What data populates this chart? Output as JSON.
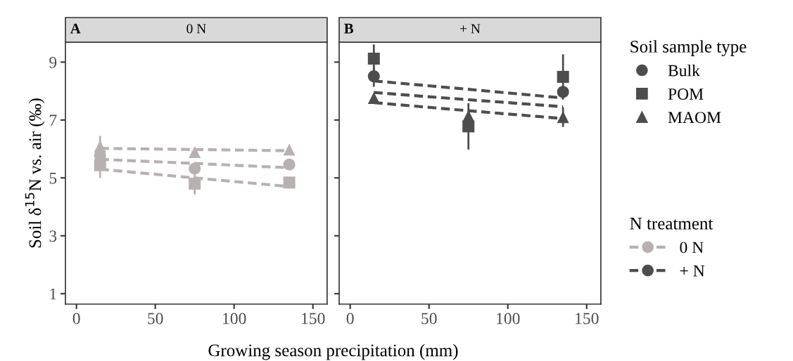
{
  "chart_data": [
    {
      "type": "scatter",
      "title": "0 N",
      "annotations": [
        "A"
      ],
      "xlabel": "Growing season precipitation (mm)",
      "ylabel": "Soil δ$^{15}$N vs. air (‰)",
      "legend": "right",
      "legend_title": "N treatment",
      "x": [
        15,
        75,
        135
      ],
      "xlim": [
        -7,
        159
      ],
      "xticks": [
        0,
        50,
        100,
        150
      ],
      "ylim": [
        0.64,
        9.69
      ],
      "yticks": [
        1,
        3,
        5,
        7,
        9
      ],
      "grid": false,
      "series": [
        {
          "color": "#b8b1b1",
          "marker": "circle",
          "values": [
            5.77,
            5.32,
            5.46
          ],
          "errors": [
            null,
            null,
            null
          ]
        },
        {
          "color": "#b8b1b1",
          "marker": "square",
          "values": [
            5.44,
            4.8,
            4.84
          ],
          "errors": [
            0.44,
            0.37,
            null
          ]
        },
        {
          "color": "#b8b1b1",
          "marker": "triangle",
          "values": [
            6.09,
            5.89,
            5.98
          ],
          "errors": [
            0.36,
            null,
            null
          ]
        },
        {
          "type": "line",
          "name": "0 N",
          "color": "#b8b1b1",
          "line_style": "dashed",
          "values": [
            5.64,
            5.5,
            5.35
          ]
        },
        {
          "type": "line",
          "color": "#b8b1b1",
          "line_style": "dashed",
          "values": [
            5.3,
            5.0,
            4.7
          ]
        },
        {
          "type": "line",
          "color": "#b8b1b1",
          "line_style": "dashed",
          "values": [
            6.02,
            5.98,
            5.94
          ]
        }
      ]
    },
    {
      "type": "scatter",
      "title": "+ N",
      "annotations": [
        "B"
      ],
      "legend": "right",
      "legend_title": "Soil sample type",
      "tick_labels": "x",
      "x": [
        15,
        75,
        135
      ],
      "xlim": [
        -7,
        159
      ],
      "xticks": [
        0,
        50,
        100,
        150
      ],
      "ylim": [
        0.64,
        9.69
      ],
      "yticks": [
        1,
        3,
        5,
        7,
        9
      ],
      "grid": false,
      "series": [
        {
          "name": "Bulk",
          "color": "#4d4d4d",
          "marker": "circle",
          "values": [
            8.51,
            null,
            7.97
          ],
          "errors": [
            0.36,
            null,
            null
          ]
        },
        {
          "name": "POM",
          "color": "#4d4d4d",
          "marker": "square",
          "values": [
            9.12,
            6.78,
            8.49
          ],
          "errors": [
            0.49,
            0.8,
            0.78
          ]
        },
        {
          "name": "MAOM",
          "color": "#4d4d4d",
          "marker": "triangle",
          "values": [
            7.76,
            7.14,
            7.1
          ],
          "errors": [
            null,
            null,
            0.34
          ]
        },
        {
          "type": "line",
          "name": "+ N",
          "color": "#4d4d4d",
          "line_style": "dashed",
          "values": [
            7.95,
            7.7,
            7.46
          ]
        },
        {
          "type": "line",
          "color": "#4d4d4d",
          "line_style": "dashed",
          "values": [
            8.35,
            8.06,
            7.76
          ]
        },
        {
          "type": "line",
          "color": "#4d4d4d",
          "line_style": "dashed",
          "values": [
            7.6,
            7.32,
            7.05
          ]
        }
      ]
    }
  ]
}
